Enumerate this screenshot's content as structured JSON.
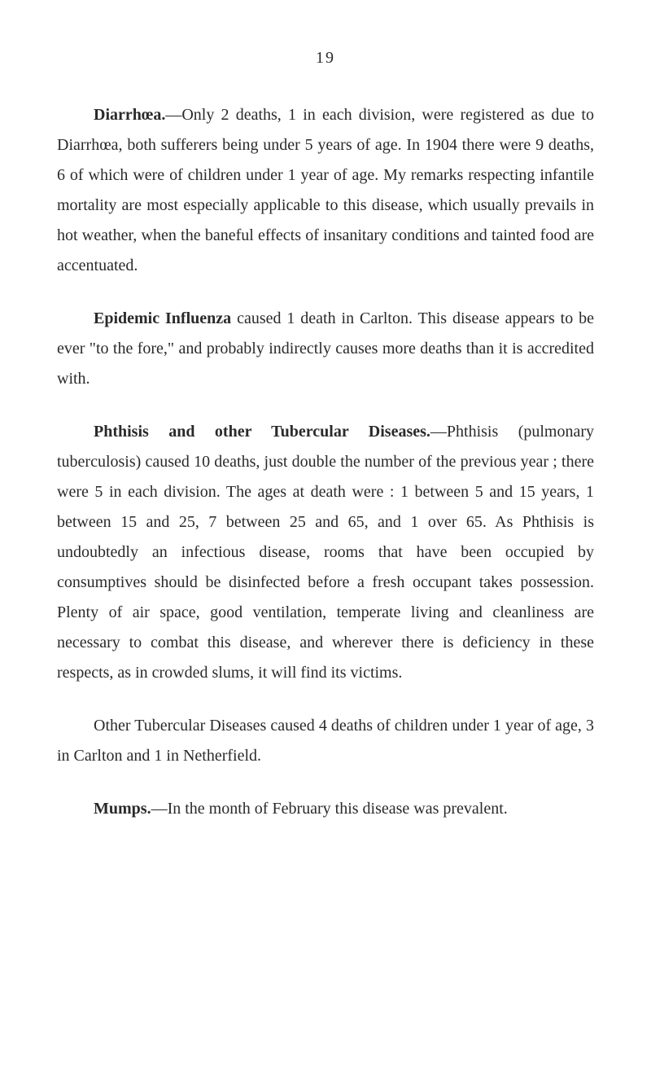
{
  "page_number": "19",
  "sections": {
    "diarrhoea": {
      "title": "Diarrhœa.",
      "body": "—Only 2 deaths, 1 in each division, were registered as due to Diarrhœa, both sufferers being under 5 years of age. In 1904 there were 9 deaths, 6 of which were of children under 1 year of age. My remarks respecting infantile mortality are most especially applicable to this disease, which usually prevails in hot weather, when the baneful effects of insanitary conditions and tainted food are accentuated."
    },
    "influenza": {
      "title": "Epidemic Influenza",
      "body": " caused 1 death in Carlton. This disease appears to be ever \"to the fore,\" and probably indirectly causes more deaths than it is accredited with."
    },
    "phthisis": {
      "title": "Phthisis and other Tubercular Diseases.",
      "body_p1": "—Phthisis (pulmonary tuberculosis) caused 10 deaths, just double the number of the previous year ; there were 5 in each division. The ages at death were : 1 between 5 and 15 years, 1 between 15 and 25, 7 between 25 and 65, and 1 over 65. As Phthisis is undoubtedly an infectious disease, rooms that have been occupied by consumptives should be disinfected before a fresh occupant takes possession. Plenty of air space, good ventilation, temperate living and cleanliness are necessary to combat this disease, and wherever there is deficiency in these respects, as in crowded slums, it will find its victims.",
      "body_p2": "Other Tubercular Diseases caused 4 deaths of children under 1 year of age, 3 in Carlton and 1 in Netherfield."
    },
    "mumps": {
      "title": "Mumps.",
      "body": "—In the month of February this disease was prevalent."
    }
  },
  "styling": {
    "background_color": "#ffffff",
    "text_color": "#2a2a2a",
    "body_fontsize": 20,
    "line_height": 1.85,
    "text_indent": 45,
    "paragraph_gap": 28
  }
}
